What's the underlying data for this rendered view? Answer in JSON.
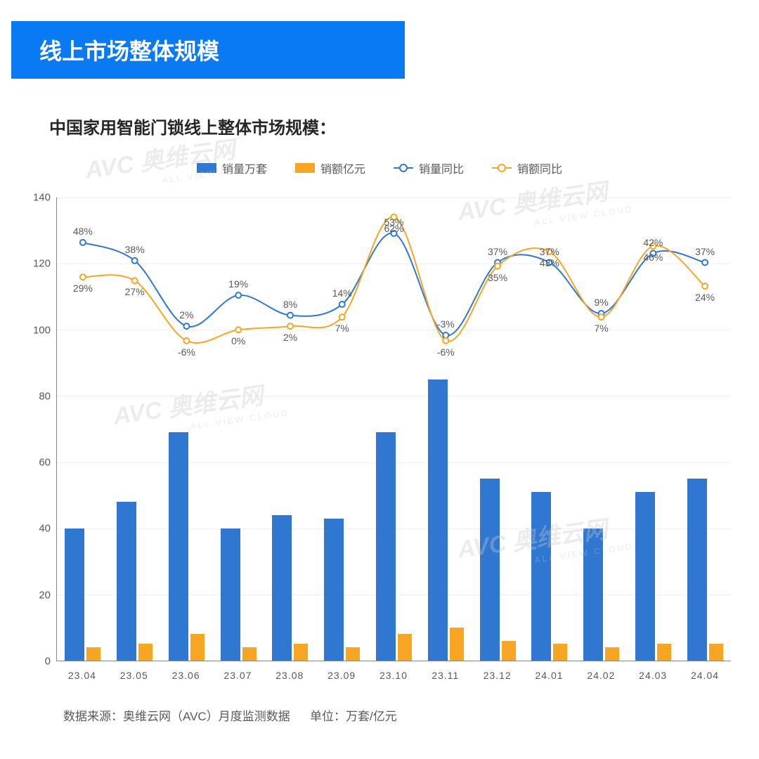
{
  "title": "线上市场整体规模",
  "subtitle": "中国家用智能门锁线上整体市场规模：",
  "legend": {
    "bar1": "销量万套",
    "bar2": "销额亿元",
    "line1": "销量同比",
    "line2": "销额同比"
  },
  "colors": {
    "bar1": "#2f77d1",
    "bar2": "#f6a623",
    "line1": "#2f77d1",
    "line2": "#f6a623",
    "title_bg": "#0a7af4",
    "background": "#ffffff",
    "text": "#595959",
    "axis": "#888888"
  },
  "chart": {
    "type": "combo-bar-line",
    "categories": [
      "23.04",
      "23.05",
      "23.06",
      "23.07",
      "23.08",
      "23.09",
      "23.10",
      "23.11",
      "23.12",
      "24.01",
      "24.02",
      "24.03",
      "24.04"
    ],
    "bar1_values": [
      40,
      48,
      69,
      40,
      44,
      43,
      69,
      85,
      55,
      51,
      40,
      51,
      55
    ],
    "bar2_values": [
      4,
      5,
      8,
      4,
      5,
      4,
      8,
      10,
      6,
      5,
      4,
      5,
      5
    ],
    "line1_values": [
      48,
      38,
      2,
      19,
      8,
      14,
      53,
      -3,
      37,
      37,
      9,
      42,
      37
    ],
    "line2_values": [
      29,
      27,
      -6,
      0,
      2,
      7,
      62,
      -6,
      35,
      43,
      7,
      46,
      24
    ],
    "line1_labels": [
      "48%",
      "38%",
      "2%",
      "19%",
      "8%",
      "14%",
      "53%",
      "-3%",
      "37%",
      "37%",
      "9%",
      "42%",
      "37%"
    ],
    "line2_labels": [
      "29%",
      "27%",
      "-6%",
      "0%",
      "2%",
      "7%",
      "62%",
      "-6%",
      "35%",
      "43%",
      "7%",
      "46%",
      "24%"
    ],
    "y_ticks": [
      0,
      20,
      40,
      60,
      80,
      100,
      120,
      140
    ],
    "y_max": 140,
    "y_min": 0,
    "line_y_map_base": 100,
    "line_y_map_scale": 0.55,
    "label_fontsize": 14,
    "tick_fontsize": 15
  },
  "footer": {
    "source": "数据来源：奥维云网（AVC）月度监测数据",
    "unit": "单位：万套/亿元"
  },
  "watermark": {
    "text": "AVC 奥维云网",
    "sub": "ALL VIEW CLOUD"
  }
}
